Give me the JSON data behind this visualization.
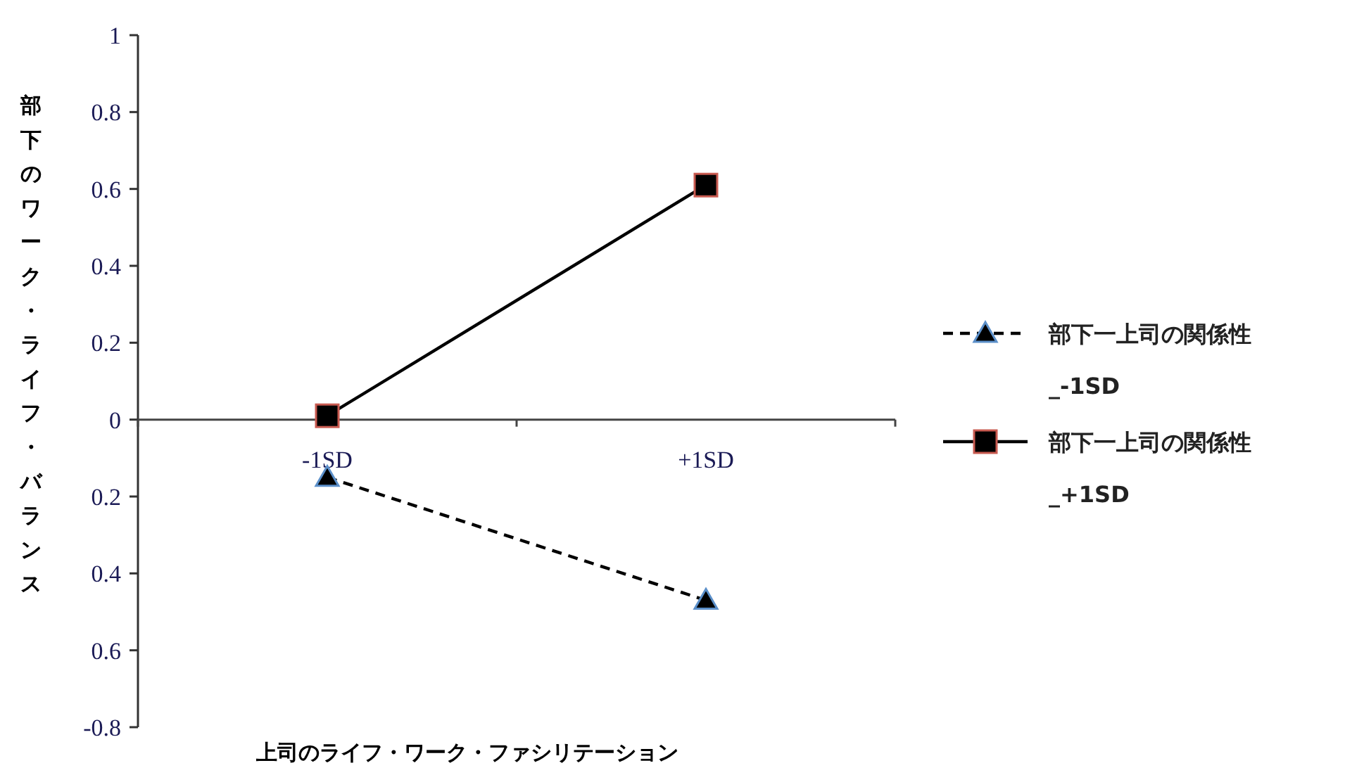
{
  "chart_data": {
    "type": "line",
    "xlabel": "上司のライフ・ワーク・ファシリテーション",
    "ylabel": "部下のワーク・ライフ・バランス",
    "categories": [
      "-1SD",
      "+1SD"
    ],
    "series": [
      {
        "name": "部下一上司の関係性_-1SD",
        "color": "#000000",
        "values": [
          -0.15,
          -0.47
        ],
        "marker": "triangle",
        "line_style": "dashed"
      },
      {
        "name": "部下一上司の関係性_+1SD",
        "color": "#000000",
        "values": [
          0.01,
          0.61
        ],
        "marker": "square",
        "line_style": "solid"
      }
    ],
    "ylim": [
      -0.8,
      1
    ],
    "yticks": [
      {
        "value": -0.8,
        "label": "-0.8"
      },
      {
        "value": -0.6,
        "label": "0.6"
      },
      {
        "value": -0.4,
        "label": "0.4"
      },
      {
        "value": -0.2,
        "label": "0.2"
      },
      0,
      0.2,
      0.4,
      0.6,
      0.8,
      1
    ],
    "grid": false,
    "legend": "right"
  }
}
